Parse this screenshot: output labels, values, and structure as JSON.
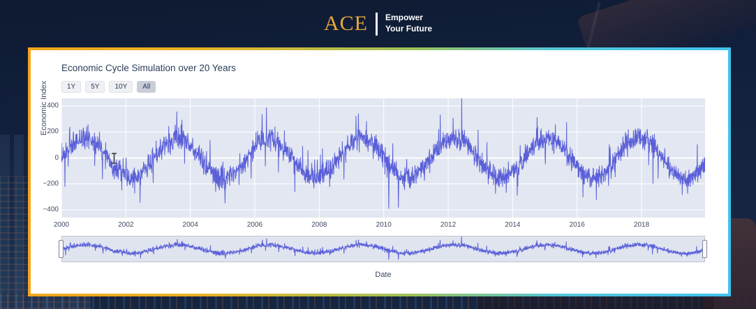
{
  "header": {
    "logo_text": "ACE",
    "logo_color": "#E8A93C",
    "tagline_line1": "Empower",
    "tagline_line2": "Your Future"
  },
  "card": {
    "border_gradient": [
      "#F5A51B",
      "#9CC35B",
      "#3FC3F0"
    ],
    "background": "#FFFFFF"
  },
  "chart": {
    "title": "Economic Cycle Simulation over 20 Years",
    "ylabel": "Economic Index",
    "xlabel": "Date",
    "range_buttons": [
      {
        "label": "1Y",
        "active": false
      },
      {
        "label": "5Y",
        "active": false
      },
      {
        "label": "10Y",
        "active": false
      },
      {
        "label": "All",
        "active": true
      }
    ]
  },
  "chart_data": {
    "type": "line",
    "title": "Economic Cycle Simulation over 20 Years",
    "xlabel": "Date",
    "ylabel": "Economic Index",
    "x_range": [
      2000,
      2019.97
    ],
    "x_ticks": [
      2000,
      2002,
      2004,
      2006,
      2008,
      2010,
      2012,
      2014,
      2016,
      2018
    ],
    "y_ticks": [
      -400,
      -200,
      0,
      200,
      400
    ],
    "y_range": [
      -460,
      460
    ],
    "grid": true,
    "legend": "none",
    "plot_bgcolor": "#E2E7F1",
    "grid_color": "#FFFFFF",
    "line_color": "#5A5FD8",
    "rangeslider": true,
    "rangeslider_bgcolor": "#DFE4EF",
    "rangeselector": [
      "1Y",
      "5Y",
      "10Y",
      "All"
    ],
    "active_range": "All",
    "series": [
      {
        "name": "Economic Index",
        "generator": {
          "kind": "noisy-sine",
          "amplitude": 155,
          "period_years": 2.87,
          "start_year": 2000,
          "end_year": 2019.97,
          "noise_sd": 42,
          "spike_prob": 0.03,
          "spike_min": 60,
          "spike_max": 250,
          "points": 2400,
          "seed": 7
        }
      }
    ]
  }
}
